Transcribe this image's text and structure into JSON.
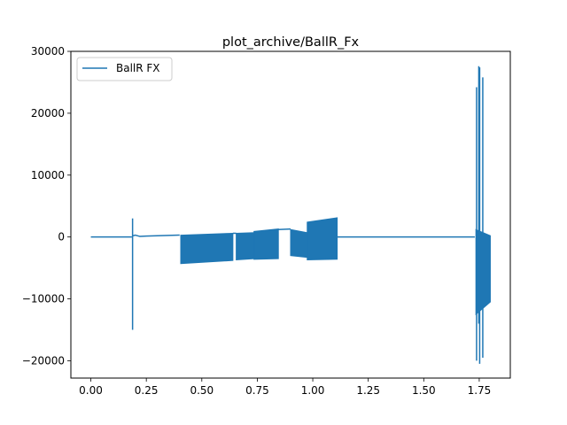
{
  "chart_data": {
    "type": "line",
    "title": "plot_archive/BallR_Fx",
    "xlabel": "",
    "ylabel": "",
    "xlim": [
      -0.09,
      1.89
    ],
    "ylim": [
      -22800,
      30000
    ],
    "xticks": [
      0.0,
      0.25,
      0.5,
      0.75,
      1.0,
      1.25,
      1.5,
      1.75
    ],
    "xtick_labels": [
      "0.00",
      "0.25",
      "0.50",
      "0.75",
      "1.00",
      "1.25",
      "1.50",
      "1.75"
    ],
    "yticks": [
      -20000,
      -10000,
      0,
      10000,
      20000,
      30000
    ],
    "ytick_labels": [
      "−20000",
      "−10000",
      "0",
      "10000",
      "20000",
      "30000"
    ],
    "grid": false,
    "legend_location": "upper left",
    "series": [
      {
        "name": "BallR FX",
        "color": "#1f77b4",
        "segments": [
          {
            "kind": "line",
            "x": [
              0.0,
              0.185
            ],
            "y": [
              0,
              0
            ]
          },
          {
            "kind": "spike",
            "x": 0.188,
            "ymin": -15000,
            "ymax": 3000
          },
          {
            "kind": "line",
            "x": [
              0.19,
              0.2,
              0.22,
              0.25,
              0.3,
              0.35,
              0.4
            ],
            "y": [
              200,
              300,
              100,
              150,
              200,
              250,
              300
            ]
          },
          {
            "kind": "band",
            "x": [
              0.405,
              0.64
            ],
            "ymin_start": -4300,
            "ymin_end": -3800,
            "ymax_start": 300,
            "ymax_end": 600
          },
          {
            "kind": "line",
            "x": [
              0.64,
              0.655
            ],
            "y": [
              600,
              600
            ]
          },
          {
            "kind": "band",
            "x": [
              0.655,
              0.735
            ],
            "ymin_start": -3700,
            "ymin_end": -3500,
            "ymax_start": 600,
            "ymax_end": 700
          },
          {
            "kind": "band",
            "x": [
              0.735,
              0.845
            ],
            "ymin_start": -3600,
            "ymin_end": -3500,
            "ymax_start": 900,
            "ymax_end": 1300
          },
          {
            "kind": "line",
            "x": [
              0.845,
              0.9
            ],
            "y": [
              1200,
              1300
            ]
          },
          {
            "kind": "band",
            "x": [
              0.9,
              0.975
            ],
            "ymin_start": -3000,
            "ymin_end": -3300,
            "ymax_start": 1200,
            "ymax_end": 700
          },
          {
            "kind": "band",
            "x": [
              0.975,
              1.11
            ],
            "ymin_start": -3700,
            "ymin_end": -3600,
            "ymax_start": 2400,
            "ymax_end": 3100
          },
          {
            "kind": "line",
            "x": [
              1.11,
              1.73
            ],
            "y": [
              0,
              0
            ]
          },
          {
            "kind": "spike",
            "x": 1.738,
            "ymin": -20000,
            "ymax": 24200
          },
          {
            "kind": "spike",
            "x": 1.748,
            "ymin": -14000,
            "ymax": 27600
          },
          {
            "kind": "spike",
            "x": 1.752,
            "ymin": -20500,
            "ymax": 27400
          },
          {
            "kind": "spike",
            "x": 1.766,
            "ymin": -19500,
            "ymax": 25800
          },
          {
            "kind": "band",
            "x": [
              1.735,
              1.8
            ],
            "ymin_start": -12500,
            "ymin_end": -10500,
            "ymax_start": 1200,
            "ymax_end": 200
          }
        ]
      }
    ]
  }
}
